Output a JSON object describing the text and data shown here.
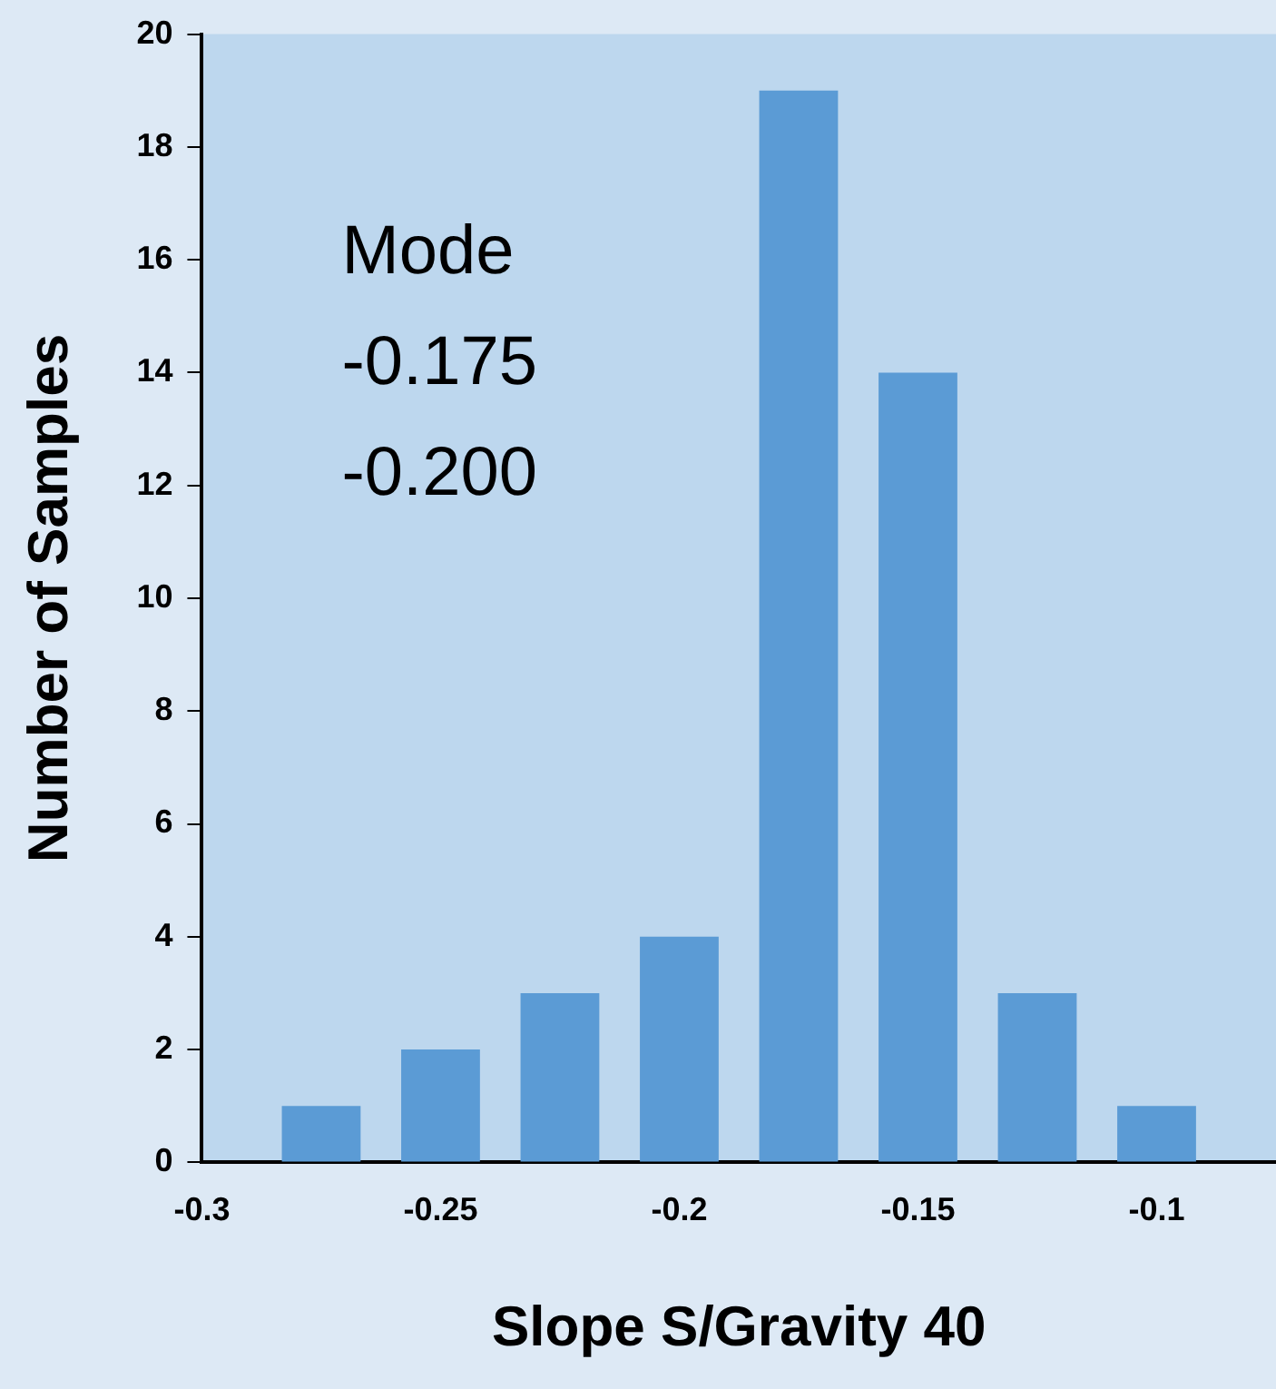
{
  "chart_data": {
    "type": "histogram",
    "xlabel": "Slope S/Gravity 40",
    "ylabel": "Number of Samples",
    "bins": [
      -0.2875,
      -0.2625,
      -0.2375,
      -0.2125,
      -0.1875,
      -0.1625,
      -0.1375,
      -0.1125,
      -0.0875
    ],
    "values": [
      1,
      2,
      3,
      4,
      19,
      14,
      3,
      1
    ],
    "color": "#5b9bd5",
    "xlim": [
      -0.3,
      -0.075
    ],
    "xticks": [
      -0.3,
      -0.25,
      -0.2,
      -0.15,
      -0.1
    ],
    "ylim": [
      0,
      20
    ],
    "yticks": [
      0,
      2,
      4,
      6,
      8,
      10,
      12,
      14,
      16,
      18,
      20
    ],
    "annotations": [
      "Mode",
      "-0.175",
      "-0.200"
    ]
  }
}
